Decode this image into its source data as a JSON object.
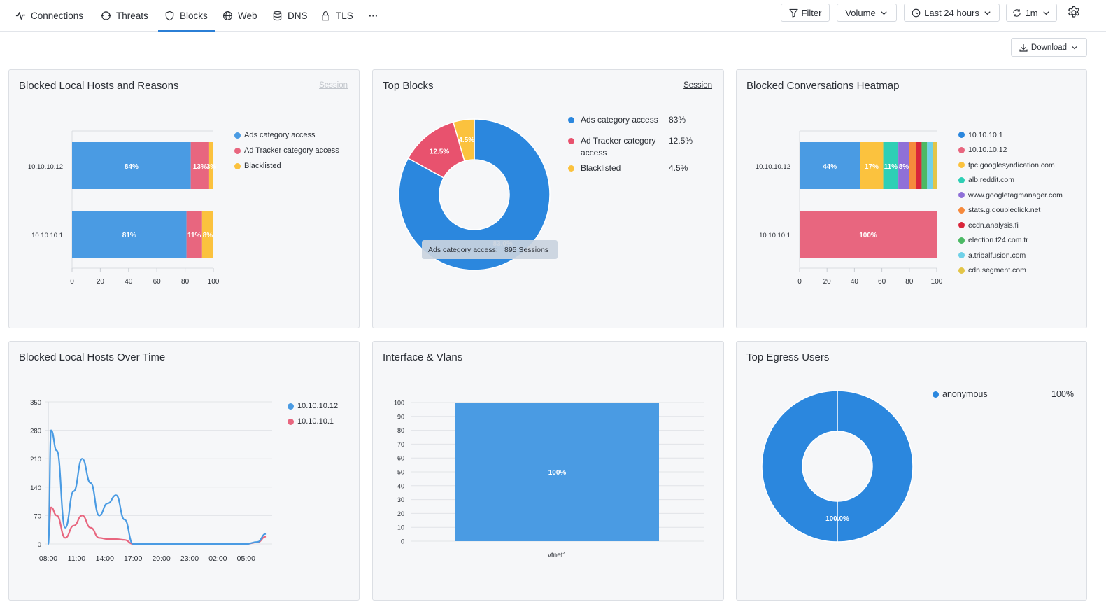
{
  "nav": {
    "tabs": [
      {
        "label": "Connections"
      },
      {
        "label": "Threats"
      },
      {
        "label": "Blocks"
      },
      {
        "label": "Web"
      },
      {
        "label": "DNS"
      },
      {
        "label": "TLS"
      }
    ],
    "more_label": "···"
  },
  "toolbar": {
    "filter_label": "Filter",
    "volume_label": "Volume",
    "time_label": "Last 24 hours",
    "refresh_label": "1m",
    "download_label": "Download"
  },
  "colors": {
    "blue": "#4a9be3",
    "pink": "#e8667f",
    "yellow": "#fbc23e",
    "donut_blue": "#2b87de",
    "teal": "#2ecfb5",
    "purple": "#8f70d8",
    "orange": "#f68a3c",
    "red": "#d9253b",
    "green": "#4cb965",
    "cyan": "#6fd1e8",
    "mustard": "#e3c548"
  },
  "panels": {
    "hosts_reasons": {
      "title": "Blocked Local Hosts and Reasons",
      "session_label": "Session"
    },
    "top_blocks": {
      "title": "Top Blocks",
      "session_label": "Session"
    },
    "heatmap": {
      "title": "Blocked Conversations Heatmap"
    },
    "over_time": {
      "title": "Blocked Local Hosts Over Time"
    },
    "interface": {
      "title": "Interface & Vlans"
    },
    "egress": {
      "title": "Top Egress Users"
    }
  },
  "chart_data": [
    {
      "id": "hosts_reasons",
      "type": "bar",
      "orientation": "horizontal",
      "stacked": true,
      "categories": [
        "10.10.10.12",
        "10.10.10.1"
      ],
      "series": [
        {
          "name": "Ads category access",
          "color": "#4a9be3",
          "values": [
            84,
            81
          ],
          "labels": [
            "84%",
            "81%"
          ]
        },
        {
          "name": "Ad Tracker category access",
          "color": "#e8667f",
          "values": [
            13,
            11
          ],
          "labels": [
            "13%",
            "11%"
          ]
        },
        {
          "name": "Blacklisted",
          "color": "#fbc23e",
          "values": [
            3,
            8
          ],
          "labels": [
            "3%",
            "8%"
          ]
        }
      ],
      "xlim": [
        0,
        100
      ],
      "xticks": [
        "0",
        "20",
        "40",
        "60",
        "80",
        "100"
      ],
      "legend_position": "top-right"
    },
    {
      "id": "top_blocks",
      "type": "pie",
      "donut": true,
      "slices": [
        {
          "name": "Ads category access",
          "value": 83,
          "label": "83.0%",
          "legend_value": "83%",
          "color": "#2b87de"
        },
        {
          "name": "Ad Tracker category access",
          "value": 12.5,
          "label": "12.5%",
          "legend_value": "12.5%",
          "color": "#e8526e"
        },
        {
          "name": "Blacklisted",
          "value": 4.5,
          "label": "4.5%",
          "legend_value": "4.5%",
          "color": "#fbc23e"
        }
      ],
      "tooltip": {
        "label": "Ads category access:",
        "value": "895 Sessions"
      },
      "legend_position": "right"
    },
    {
      "id": "heatmap",
      "type": "bar",
      "orientation": "horizontal",
      "stacked": true,
      "categories": [
        "10.10.10.12",
        "10.10.10.1"
      ],
      "series": [
        {
          "name": "10.10.10.1",
          "color": "#2b87de",
          "values": [
            0,
            0
          ],
          "labels": [
            "",
            ""
          ]
        },
        {
          "name": "10.10.10.12",
          "color": "#e8667f",
          "values": [
            0,
            100
          ],
          "labels": [
            "",
            "100%"
          ]
        },
        {
          "name": "tpc.googlesyndication.com",
          "color": "#fbc23e",
          "values": [
            17,
            0
          ],
          "labels": [
            "17%",
            ""
          ]
        },
        {
          "name": "alb.reddit.com",
          "color": "#2ecfb5",
          "values": [
            11,
            0
          ],
          "labels": [
            "11%",
            ""
          ]
        },
        {
          "name": "www.googletagmanager.com",
          "color": "#8f70d8",
          "values": [
            8,
            0
          ],
          "labels": [
            "8%",
            ""
          ]
        },
        {
          "name": "stats.g.doubleclick.net",
          "color": "#f68a3c",
          "values": [
            5,
            0
          ],
          "labels": [
            "",
            ""
          ]
        },
        {
          "name": "ecdn.analysis.fi",
          "color": "#d9253b",
          "values": [
            4,
            0
          ],
          "labels": [
            "",
            ""
          ]
        },
        {
          "name": "election.t24.com.tr",
          "color": "#4cb965",
          "values": [
            4,
            0
          ],
          "labels": [
            "",
            ""
          ]
        },
        {
          "name": "a.tribalfusion.com",
          "color": "#6fd1e8",
          "values": [
            4,
            0
          ],
          "labels": [
            "",
            ""
          ]
        },
        {
          "name": "cdn.segment.com",
          "color": "#e3c548",
          "values": [
            3,
            0
          ],
          "labels": [
            "",
            ""
          ]
        }
      ],
      "first_segment": {
        "category": "10.10.10.12",
        "value": 44,
        "label": "44%",
        "color": "#4a9be3"
      },
      "xlim": [
        0,
        100
      ],
      "xticks": [
        "0",
        "20",
        "40",
        "60",
        "80",
        "100"
      ],
      "legend_position": "right"
    },
    {
      "id": "over_time",
      "type": "line",
      "x_labels": [
        "08:00",
        "11:00",
        "14:00",
        "17:00",
        "20:00",
        "23:00",
        "02:00",
        "05:00"
      ],
      "ylim": [
        0,
        350
      ],
      "yticks": [
        "0",
        "70",
        "140",
        "210",
        "280",
        "350"
      ],
      "series": [
        {
          "name": "10.10.10.12",
          "color": "#4a9be3",
          "x": [
            0,
            0.1,
            0.3,
            0.6,
            0.9,
            1.2,
            1.5,
            1.8,
            2.1,
            2.4,
            2.7,
            3.0,
            3.3,
            3.6,
            4,
            5,
            6,
            7,
            7.4,
            7.7
          ],
          "y": [
            0,
            280,
            230,
            40,
            130,
            210,
            150,
            70,
            100,
            120,
            60,
            0,
            0,
            0,
            0,
            0,
            0,
            0,
            5,
            25
          ]
        },
        {
          "name": "10.10.10.1",
          "color": "#e8667f",
          "x": [
            0,
            0.1,
            0.3,
            0.6,
            0.9,
            1.2,
            1.5,
            1.8,
            2.1,
            2.4,
            2.7,
            3.0,
            3.3,
            4,
            5,
            6,
            7,
            7.4,
            7.7
          ],
          "y": [
            20,
            90,
            70,
            15,
            45,
            70,
            40,
            15,
            12,
            12,
            10,
            0,
            0,
            0,
            0,
            0,
            0,
            4,
            18
          ]
        }
      ],
      "legend_position": "top-right"
    },
    {
      "id": "interface",
      "type": "bar",
      "categories": [
        "vtnet1"
      ],
      "values": [
        100
      ],
      "labels": [
        "100%"
      ],
      "ylim": [
        0,
        100
      ],
      "yticks": [
        "0",
        "10",
        "20",
        "30",
        "40",
        "50",
        "60",
        "70",
        "80",
        "90",
        "100"
      ],
      "color": "#4a9be3"
    },
    {
      "id": "egress",
      "type": "pie",
      "donut": true,
      "slices": [
        {
          "name": "anonymous",
          "value": 100,
          "label": "100.0%",
          "legend_value": "100%",
          "color": "#2b87de"
        }
      ],
      "legend_position": "top-right"
    }
  ]
}
